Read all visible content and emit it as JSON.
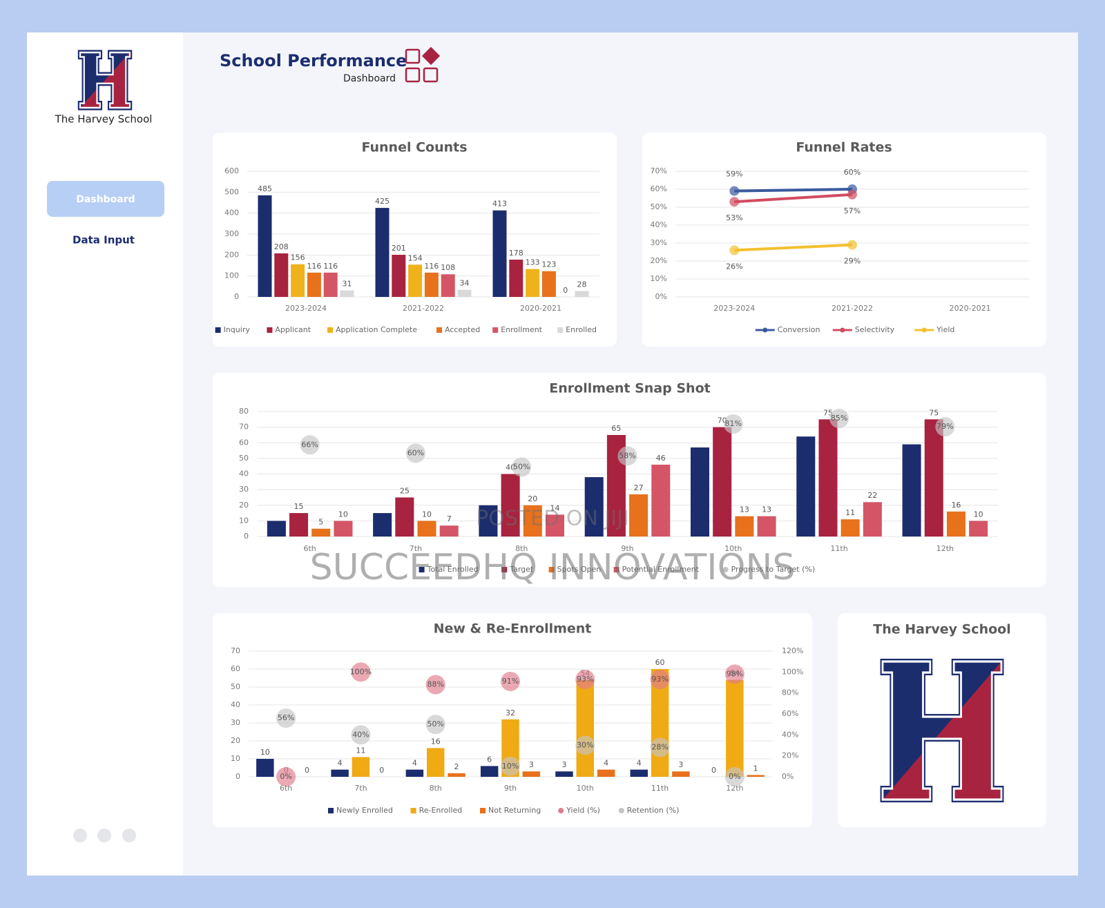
{
  "sidebar": {
    "school_name": "The Harvey School",
    "nav": [
      "Dashboard",
      "Data Input"
    ]
  },
  "header": {
    "title": "School Performance",
    "subtitle": "Dashboard"
  },
  "logo_panel": {
    "title": "The Harvey School"
  },
  "watermark": [
    "POSTED ON JIJI",
    "SUCCEEDHQ INNOVATIONS"
  ],
  "chart_data": [
    {
      "type": "bar",
      "title": "Funnel Counts",
      "categories": [
        "2023-2024",
        "2021-2022",
        "2020-2021"
      ],
      "series": [
        {
          "name": "Inquiry",
          "color": "#1c2d6e",
          "values": [
            485,
            425,
            413
          ]
        },
        {
          "name": "Applicant",
          "color": "#a8233f",
          "values": [
            208,
            201,
            178
          ]
        },
        {
          "name": "Application Complete",
          "color": "#f0b21b",
          "values": [
            156,
            154,
            133
          ]
        },
        {
          "name": "Accepted",
          "color": "#e8711c",
          "values": [
            116,
            116,
            123
          ]
        },
        {
          "name": "Enrollment",
          "color": "#d45566",
          "values": [
            116,
            108,
            0
          ]
        },
        {
          "name": "Enrolled",
          "color": "#d9d9d9",
          "values": [
            31,
            34,
            28
          ]
        }
      ],
      "ylim": [
        0,
        600
      ],
      "yticks": [
        0,
        100,
        200,
        300,
        400,
        500,
        600
      ],
      "grid": true,
      "legend": "bottom"
    },
    {
      "type": "line",
      "title": "Funnel Rates",
      "categories": [
        "2023-2024",
        "2021-2022",
        "2020-2021"
      ],
      "series": [
        {
          "name": "Conversion",
          "color": "#3a5a9e",
          "values": [
            59,
            60,
            null
          ],
          "value_labels": [
            "59%",
            "60%",
            null
          ],
          "label_position": "above"
        },
        {
          "name": "Selectivity",
          "color": "#d24b60",
          "values": [
            53,
            57,
            null
          ],
          "value_labels": [
            "53%",
            "57%",
            null
          ],
          "label_position": "below"
        },
        {
          "name": "Yield",
          "color": "#f2c030",
          "values": [
            26,
            29,
            null
          ],
          "value_labels": [
            "26%",
            "29%",
            null
          ],
          "label_position": "below"
        }
      ],
      "ylim": [
        0,
        70
      ],
      "yticks": [
        {
          "value": 0,
          "label": "0%"
        },
        {
          "value": 10,
          "label": "10%"
        },
        {
          "value": 20,
          "label": "20%"
        },
        {
          "value": 30,
          "label": "30%"
        },
        {
          "value": 40,
          "label": "40%"
        },
        {
          "value": 50,
          "label": "50%"
        },
        {
          "value": 60,
          "label": "60%"
        },
        {
          "value": 70,
          "label": "70%"
        }
      ],
      "grid": true,
      "legend": "bottom"
    },
    {
      "type": "bar",
      "title": "Enrollment Snap Shot",
      "categories": [
        "6th",
        "7th",
        "8th",
        "9th",
        "10th",
        "11th",
        "12th"
      ],
      "series": [
        {
          "name": "Total Enrolled",
          "color": "#1c2d6e",
          "values": [
            10,
            15,
            20,
            38,
            57,
            64,
            59
          ],
          "show_labels": false
        },
        {
          "name": "Target",
          "color": "#a8233f",
          "values": [
            15,
            25,
            40,
            65,
            70,
            75,
            75
          ]
        },
        {
          "name": "Spots Open",
          "color": "#e8711c",
          "values": [
            5,
            10,
            20,
            27,
            13,
            11,
            16
          ]
        },
        {
          "name": "Potential Enrollment",
          "color": "#d45566",
          "values": [
            10,
            7,
            14,
            46,
            13,
            22,
            10
          ]
        },
        {
          "name": "Progress to Target (%)",
          "color": "#c4c4c4",
          "axis": "y2",
          "values": [
            66,
            60,
            50,
            58,
            81,
            85,
            79
          ],
          "value_labels": [
            "66%",
            "60%",
            "50%",
            "58%",
            "81%",
            "85%",
            "79%"
          ]
        }
      ],
      "ylim": [
        0,
        80
      ],
      "yticks": [
        0,
        10,
        20,
        30,
        40,
        50,
        60,
        70,
        80
      ],
      "y2lim": [
        0,
        90
      ],
      "grid": true,
      "legend": "bottom"
    },
    {
      "type": "bar",
      "title": "New & Re-Enrollment",
      "categories": [
        "6th",
        "7th",
        "8th",
        "9th",
        "10th",
        "11th",
        "12th"
      ],
      "series": [
        {
          "name": "Newly Enrolled",
          "color": "#1c2d6e",
          "values": [
            10,
            4,
            4,
            6,
            3,
            4,
            0
          ]
        },
        {
          "name": "Re-Enrolled",
          "color": "#f0aa14",
          "values": [
            0,
            11,
            16,
            32,
            54,
            60,
            54
          ]
        },
        {
          "name": "Not Returning",
          "color": "#e8711c",
          "values": [
            0,
            0,
            2,
            3,
            4,
            3,
            1
          ]
        },
        {
          "name": "Yield (%)",
          "color": "#e07b8c",
          "axis": "y2",
          "values": [
            0,
            100,
            88,
            91,
            93,
            93,
            98
          ],
          "value_labels": [
            "0%",
            "100%",
            "88%",
            "91%",
            "93%",
            "93%",
            "98%"
          ]
        },
        {
          "name": "Retention (%)",
          "color": "#c4c4c4",
          "axis": "y2",
          "values": [
            56,
            40,
            50,
            10,
            30,
            28,
            0
          ],
          "value_labels": [
            "56%",
            "40%",
            "50%",
            "10%",
            "30%",
            "28%",
            "0%"
          ]
        }
      ],
      "ylim": [
        0,
        70
      ],
      "yticks": [
        0,
        10,
        20,
        30,
        40,
        50,
        60,
        70
      ],
      "y2lim": [
        0,
        120
      ],
      "y2ticks": [
        {
          "value": 0,
          "label": "0%"
        },
        {
          "value": 20,
          "label": "20%"
        },
        {
          "value": 40,
          "label": "40%"
        },
        {
          "value": 60,
          "label": "60%"
        },
        {
          "value": 80,
          "label": "80%"
        },
        {
          "value": 100,
          "label": "100%"
        },
        {
          "value": 120,
          "label": "120%"
        }
      ],
      "grid": true,
      "legend": "bottom"
    }
  ]
}
